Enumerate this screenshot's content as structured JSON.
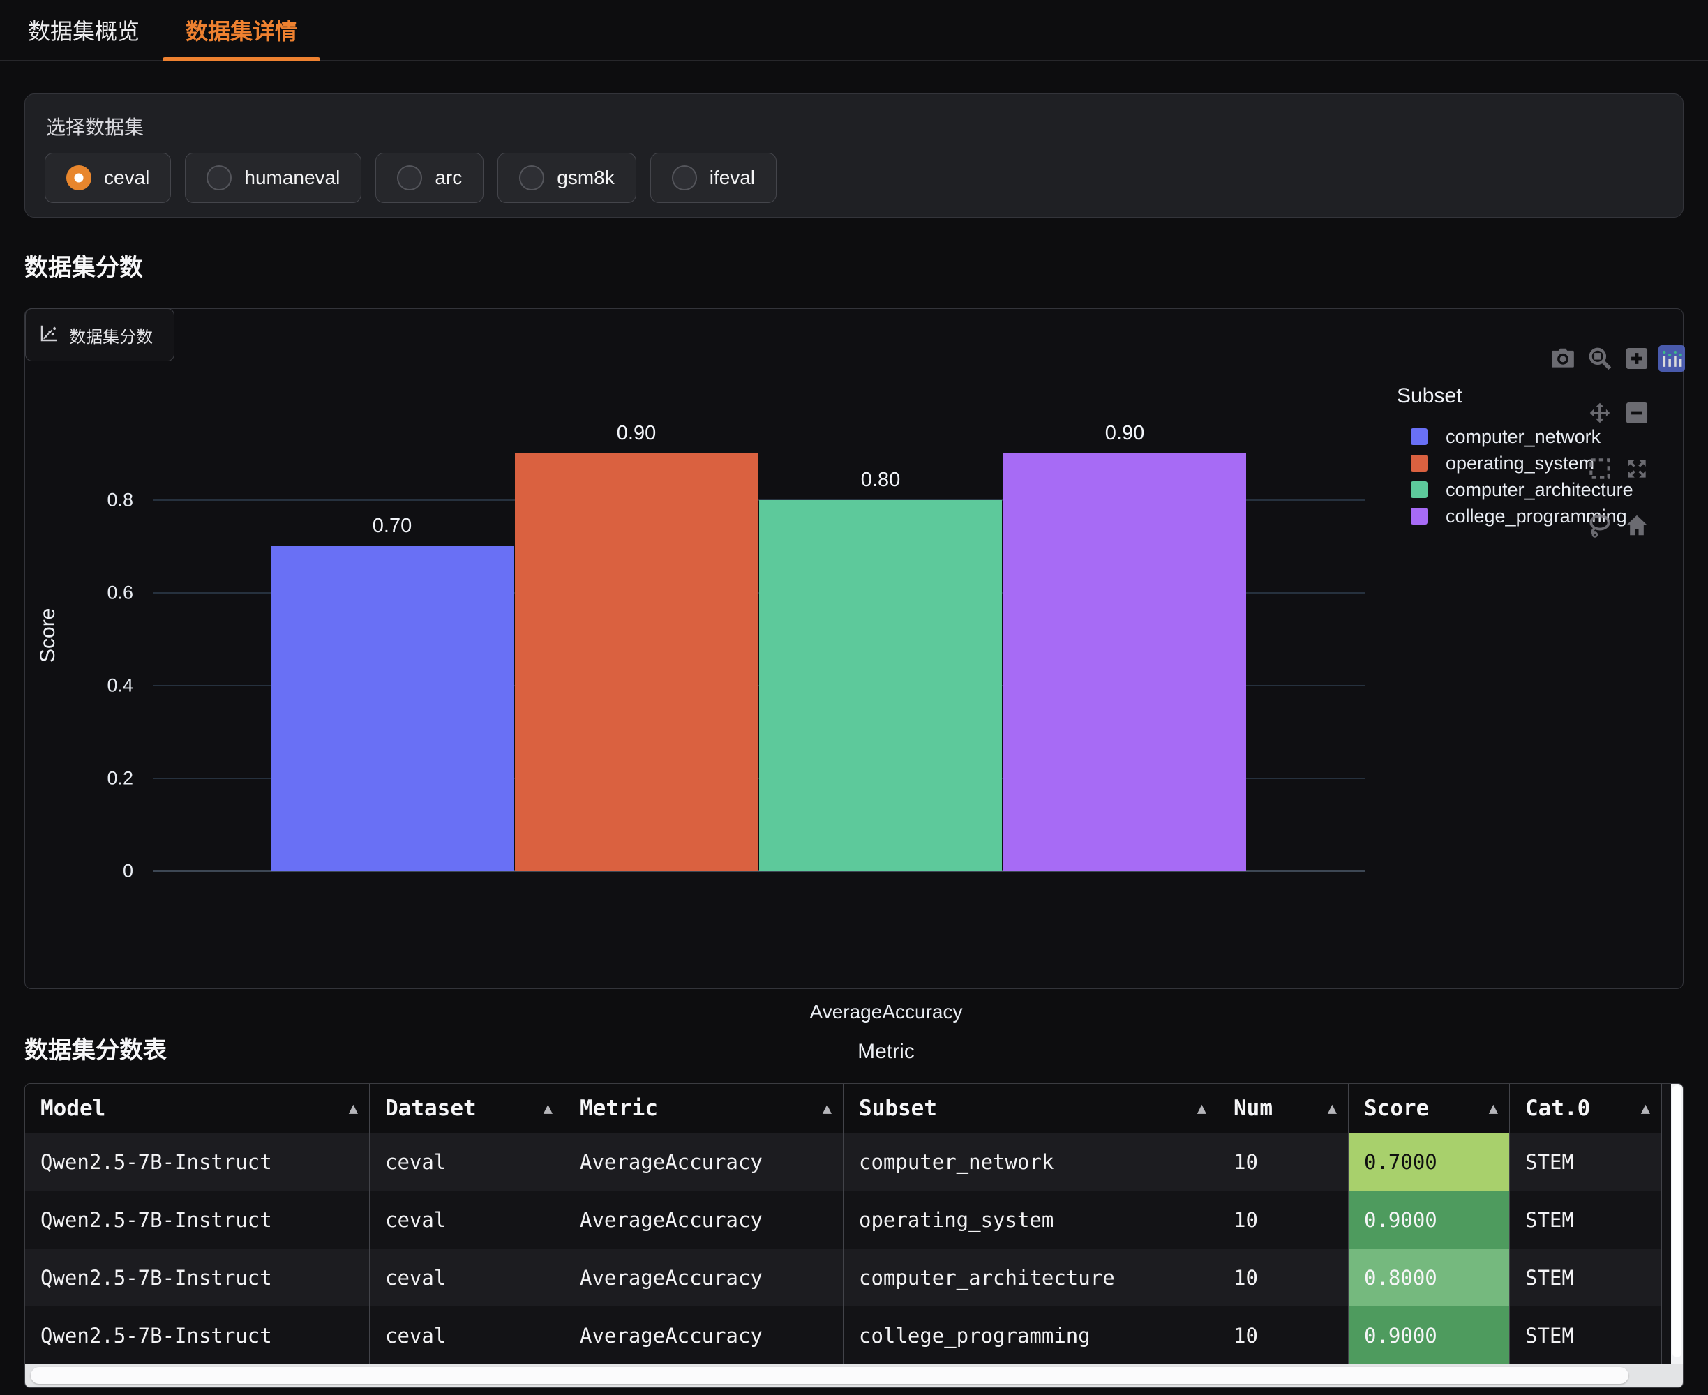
{
  "tabs": [
    {
      "label": "数据集概览",
      "active": false
    },
    {
      "label": "数据集详情",
      "active": true
    }
  ],
  "selector": {
    "label": "选择数据集",
    "options": [
      {
        "label": "ceval",
        "selected": true
      },
      {
        "label": "humaneval",
        "selected": false
      },
      {
        "label": "arc",
        "selected": false
      },
      {
        "label": "gsm8k",
        "selected": false
      },
      {
        "label": "ifeval",
        "selected": false
      }
    ]
  },
  "scores_section": {
    "heading": "数据集分数",
    "panel_label": "数据集分数"
  },
  "chart_data": {
    "type": "bar",
    "title": "数据集分数",
    "categories": [
      "AverageAccuracy"
    ],
    "series": [
      {
        "name": "computer_network",
        "values": [
          0.7
        ],
        "data_label": "0.70",
        "color": "#6970F5"
      },
      {
        "name": "operating_system",
        "values": [
          0.9
        ],
        "data_label": "0.90",
        "color": "#DA6140"
      },
      {
        "name": "computer_architecture",
        "values": [
          0.8
        ],
        "data_label": "0.80",
        "color": "#5DC99B"
      },
      {
        "name": "college_programming",
        "values": [
          0.9
        ],
        "data_label": "0.90",
        "color": "#A76BF5"
      }
    ],
    "xlabel": "Metric",
    "ylabel": "Score",
    "yticks": [
      0,
      0.2,
      0.4,
      0.6,
      0.8
    ],
    "ylim": [
      0,
      0.9486
    ],
    "grid": true,
    "legend_title": "Subset",
    "legend_position": "right"
  },
  "modebar": {
    "icons": [
      "camera",
      "zoom",
      "zoom-in",
      "plotly-logo",
      "pan",
      "zoom-out",
      "box-select",
      "autoscale",
      "lasso",
      "reset-home"
    ],
    "logo_color": "#5468C8",
    "icon_color": "#7c7c82"
  },
  "table_section": {
    "heading": "数据集分数表"
  },
  "table": {
    "columns": [
      "Model",
      "Dataset",
      "Metric",
      "Subset",
      "Num",
      "Score",
      "Cat.0"
    ],
    "sort_icon": "▲",
    "rows": [
      {
        "cells": [
          "Qwen2.5-7B-Instruct",
          "ceval",
          "AverageAccuracy",
          "computer_network",
          "10",
          "0.7000",
          "STEM"
        ],
        "score_bg": "#A8D06C",
        "score_fg": "#101010"
      },
      {
        "cells": [
          "Qwen2.5-7B-Instruct",
          "ceval",
          "AverageAccuracy",
          "operating_system",
          "10",
          "0.9000",
          "STEM"
        ],
        "score_bg": "#4E9B5E",
        "score_fg": "#F5F5F7"
      },
      {
        "cells": [
          "Qwen2.5-7B-Instruct",
          "ceval",
          "AverageAccuracy",
          "computer_architecture",
          "10",
          "0.8000",
          "STEM"
        ],
        "score_bg": "#75B97E",
        "score_fg": "#F5F5F7"
      },
      {
        "cells": [
          "Qwen2.5-7B-Instruct",
          "ceval",
          "AverageAccuracy",
          "college_programming",
          "10",
          "0.9000",
          "STEM"
        ],
        "score_bg": "#4E9B5E",
        "score_fg": "#F5F5F7"
      }
    ]
  },
  "colors": {
    "accent": "#EE8130",
    "radio_selected": "#E8862D"
  }
}
